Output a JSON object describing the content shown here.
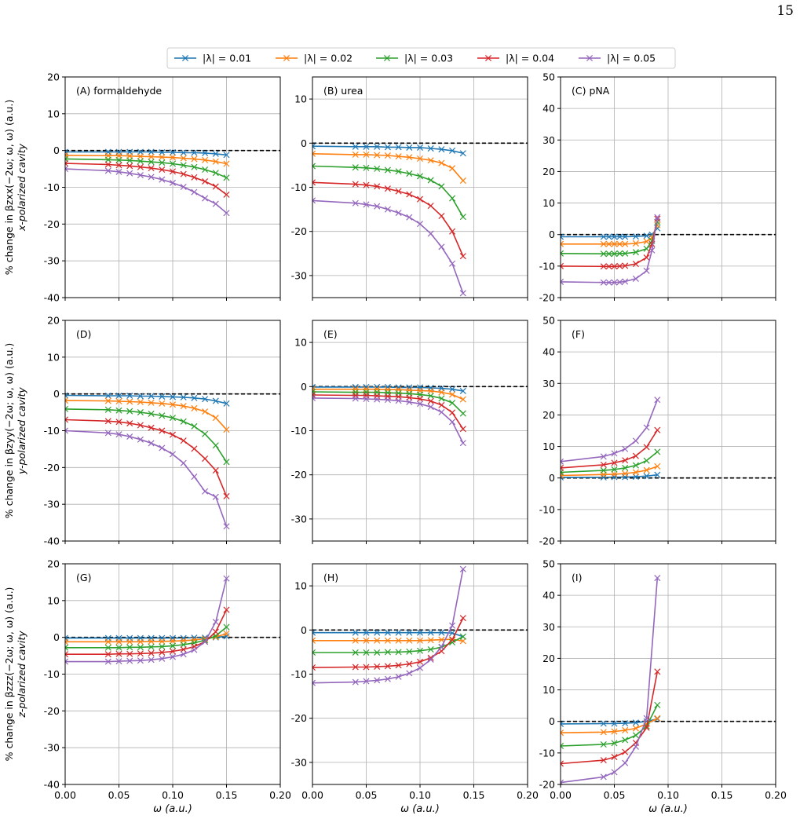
{
  "page_number": "15",
  "colors": {
    "series": [
      "#1f77b4",
      "#ff7f0e",
      "#2ca02c",
      "#d62728",
      "#9467bd"
    ],
    "reference_line": "#000000",
    "grid": "#b0b0b0"
  },
  "legend": {
    "placement": "top-center",
    "entries": [
      "|λ| = 0.01",
      "|λ| = 0.02",
      "|λ| = 0.03",
      "|λ| = 0.04",
      "|λ| = 0.05"
    ]
  },
  "xlabel": "ω (a.u.)",
  "row_ylabels": [
    [
      "% change in βzxx(−2ω; ω, ω) (a.u.)",
      "x-polarized cavity"
    ],
    [
      "% change in βzyy(−2ω; ω, ω) (a.u.)",
      "y-polarized cavity"
    ],
    [
      "% change in βzzz(−2ω; ω, ω) (a.u.)",
      "z-polarized cavity"
    ]
  ],
  "chart_data": [
    {
      "type": "line",
      "title": "(A) formaldehyde",
      "x": [
        0,
        0.04,
        0.05,
        0.06,
        0.07,
        0.08,
        0.09,
        0.1,
        0.11,
        0.12,
        0.13,
        0.14,
        0.15
      ],
      "xlim": [
        0,
        0.2
      ],
      "ylim": [
        -40,
        20
      ],
      "xticks": [
        0,
        0.05,
        0.1,
        0.15,
        0.2
      ],
      "yticks": [
        -40,
        -30,
        -20,
        -10,
        0,
        10,
        20
      ],
      "show_xticklabels": false,
      "grid": true,
      "reference_y": 0,
      "series": [
        {
          "name": "|λ| = 0.01",
          "values": [
            -0.4,
            -0.4,
            -0.4,
            -0.4,
            -0.4,
            -0.4,
            -0.5,
            -0.5,
            -0.6,
            -0.6,
            -0.7,
            -0.9,
            -1.2
          ]
        },
        {
          "name": "|λ| = 0.02",
          "values": [
            -1.3,
            -1.4,
            -1.4,
            -1.5,
            -1.6,
            -1.7,
            -1.8,
            -1.9,
            -2.1,
            -2.3,
            -2.6,
            -3.0,
            -3.6
          ]
        },
        {
          "name": "|λ| = 0.03",
          "values": [
            -2.3,
            -2.5,
            -2.6,
            -2.7,
            -2.9,
            -3.1,
            -3.3,
            -3.6,
            -4.0,
            -4.5,
            -5.2,
            -6.1,
            -7.4
          ]
        },
        {
          "name": "|λ| = 0.04",
          "values": [
            -3.5,
            -3.8,
            -4.0,
            -4.2,
            -4.5,
            -4.8,
            -5.2,
            -5.7,
            -6.4,
            -7.3,
            -8.4,
            -9.8,
            -12.0
          ]
        },
        {
          "name": "|λ| = 0.05",
          "values": [
            -5.0,
            -5.5,
            -5.8,
            -6.2,
            -6.7,
            -7.2,
            -7.9,
            -8.8,
            -9.9,
            -11.3,
            -13.0,
            -14.5,
            -17.0
          ]
        }
      ]
    },
    {
      "type": "line",
      "title": "(B) urea",
      "x": [
        0,
        0.04,
        0.05,
        0.06,
        0.07,
        0.08,
        0.09,
        0.1,
        0.11,
        0.12,
        0.13,
        0.14
      ],
      "xlim": [
        0,
        0.2
      ],
      "ylim": [
        -35,
        15
      ],
      "xticks": [
        0,
        0.05,
        0.1,
        0.15,
        0.2
      ],
      "yticks": [
        -30,
        -20,
        -10,
        0,
        10
      ],
      "show_xticklabels": false,
      "grid": true,
      "reference_y": 0,
      "series": [
        {
          "name": "|λ| = 0.01",
          "values": [
            -0.7,
            -0.8,
            -0.8,
            -0.8,
            -0.9,
            -0.9,
            -1.0,
            -1.0,
            -1.2,
            -1.4,
            -1.7,
            -2.3
          ]
        },
        {
          "name": "|λ| = 0.02",
          "values": [
            -2.4,
            -2.6,
            -2.6,
            -2.7,
            -2.8,
            -3.0,
            -3.2,
            -3.5,
            -3.9,
            -4.5,
            -5.7,
            -8.5
          ]
        },
        {
          "name": "|λ| = 0.03",
          "values": [
            -5.2,
            -5.5,
            -5.6,
            -5.8,
            -6.1,
            -6.4,
            -6.9,
            -7.5,
            -8.4,
            -9.8,
            -12.5,
            -16.7
          ]
        },
        {
          "name": "|λ| = 0.04",
          "values": [
            -8.9,
            -9.3,
            -9.5,
            -9.8,
            -10.3,
            -10.9,
            -11.6,
            -12.7,
            -14.2,
            -16.5,
            -20.0,
            -25.6
          ]
        },
        {
          "name": "|λ| = 0.05",
          "values": [
            -13.0,
            -13.6,
            -13.9,
            -14.3,
            -15.0,
            -15.8,
            -16.8,
            -18.3,
            -20.5,
            -23.5,
            -27.3,
            -34.0
          ]
        }
      ]
    },
    {
      "type": "line",
      "title": "(C) pNA",
      "x": [
        0,
        0.04,
        0.045,
        0.05,
        0.055,
        0.06,
        0.07,
        0.08,
        0.085,
        0.09
      ],
      "xlim": [
        0,
        0.2
      ],
      "ylim": [
        -20,
        50
      ],
      "xticks": [
        0,
        0.05,
        0.1,
        0.15,
        0.2
      ],
      "yticks": [
        -20,
        -10,
        0,
        10,
        20,
        30,
        40,
        50
      ],
      "show_xticklabels": false,
      "grid": true,
      "reference_y": 0,
      "series": [
        {
          "name": "|λ| = 0.01",
          "values": [
            -0.7,
            -0.7,
            -0.7,
            -0.7,
            -0.7,
            -0.7,
            -0.6,
            -0.4,
            0.0,
            2.0
          ]
        },
        {
          "name": "|λ| = 0.02",
          "values": [
            -3.0,
            -3.0,
            -3.0,
            -3.0,
            -3.0,
            -3.0,
            -2.8,
            -2.2,
            -1.0,
            3.0
          ]
        },
        {
          "name": "|λ| = 0.03",
          "values": [
            -6.0,
            -6.1,
            -6.1,
            -6.1,
            -6.0,
            -6.0,
            -5.6,
            -4.5,
            -2.0,
            4.0
          ]
        },
        {
          "name": "|λ| = 0.04",
          "values": [
            -10.0,
            -10.1,
            -10.1,
            -10.1,
            -10.0,
            -9.9,
            -9.3,
            -7.3,
            -3.0,
            5.0
          ]
        },
        {
          "name": "|λ| = 0.05",
          "values": [
            -15.0,
            -15.2,
            -15.2,
            -15.2,
            -15.1,
            -14.9,
            -14.0,
            -11.5,
            -5.0,
            5.5
          ]
        }
      ]
    },
    {
      "type": "line",
      "title": "(D)",
      "x": [
        0,
        0.04,
        0.05,
        0.06,
        0.07,
        0.08,
        0.09,
        0.1,
        0.11,
        0.12,
        0.13,
        0.14,
        0.15
      ],
      "xlim": [
        0,
        0.2
      ],
      "ylim": [
        -40,
        20
      ],
      "xticks": [
        0,
        0.05,
        0.1,
        0.15,
        0.2
      ],
      "yticks": [
        -40,
        -30,
        -20,
        -10,
        0,
        10,
        20
      ],
      "show_xticklabels": false,
      "grid": true,
      "reference_y": 0,
      "series": [
        {
          "name": "|λ| = 0.01",
          "values": [
            -0.4,
            -0.5,
            -0.5,
            -0.5,
            -0.6,
            -0.6,
            -0.7,
            -0.8,
            -0.9,
            -1.1,
            -1.4,
            -1.9,
            -2.6
          ]
        },
        {
          "name": "|λ| = 0.02",
          "values": [
            -1.8,
            -1.9,
            -2.0,
            -2.1,
            -2.2,
            -2.4,
            -2.6,
            -2.9,
            -3.3,
            -3.9,
            -4.8,
            -6.5,
            -9.7
          ]
        },
        {
          "name": "|λ| = 0.03",
          "values": [
            -4.1,
            -4.3,
            -4.5,
            -4.7,
            -5.0,
            -5.4,
            -5.9,
            -6.5,
            -7.5,
            -8.8,
            -10.9,
            -14.0,
            -18.5
          ]
        },
        {
          "name": "|λ| = 0.04",
          "values": [
            -7.0,
            -7.4,
            -7.6,
            -8.0,
            -8.5,
            -9.2,
            -10.0,
            -11.1,
            -12.7,
            -14.9,
            -17.6,
            -20.8,
            -27.8
          ]
        },
        {
          "name": "|λ| = 0.05",
          "values": [
            -10.0,
            -10.6,
            -11.0,
            -11.6,
            -12.4,
            -13.4,
            -14.7,
            -16.4,
            -18.8,
            -22.5,
            -26.5,
            -28.0,
            -36.0
          ]
        }
      ]
    },
    {
      "type": "line",
      "title": "(E)",
      "x": [
        0,
        0.04,
        0.05,
        0.06,
        0.07,
        0.08,
        0.09,
        0.1,
        0.11,
        0.12,
        0.13,
        0.14
      ],
      "xlim": [
        0,
        0.2
      ],
      "ylim": [
        -35,
        15
      ],
      "xticks": [
        0,
        0.05,
        0.1,
        0.15,
        0.2
      ],
      "yticks": [
        -30,
        -20,
        -10,
        0,
        10
      ],
      "show_xticklabels": false,
      "grid": true,
      "reference_y": 0,
      "series": [
        {
          "name": "|λ| = 0.01",
          "values": [
            -0.1,
            -0.1,
            -0.1,
            -0.1,
            -0.1,
            -0.2,
            -0.2,
            -0.2,
            -0.3,
            -0.4,
            -0.6,
            -1.0
          ]
        },
        {
          "name": "|λ| = 0.02",
          "values": [
            -0.6,
            -0.6,
            -0.6,
            -0.6,
            -0.7,
            -0.7,
            -0.8,
            -0.9,
            -1.0,
            -1.3,
            -1.8,
            -2.9
          ]
        },
        {
          "name": "|λ| = 0.03",
          "values": [
            -1.2,
            -1.3,
            -1.3,
            -1.3,
            -1.4,
            -1.5,
            -1.6,
            -1.8,
            -2.1,
            -2.7,
            -3.7,
            -6.1
          ]
        },
        {
          "name": "|λ| = 0.04",
          "values": [
            -1.9,
            -2.0,
            -2.0,
            -2.1,
            -2.2,
            -2.3,
            -2.5,
            -2.8,
            -3.3,
            -4.2,
            -5.9,
            -9.6
          ]
        },
        {
          "name": "|λ| = 0.05",
          "values": [
            -2.6,
            -2.7,
            -2.8,
            -2.9,
            -3.0,
            -3.2,
            -3.5,
            -3.9,
            -4.6,
            -5.8,
            -8.0,
            -12.8
          ]
        }
      ]
    },
    {
      "type": "line",
      "title": "(F)",
      "x": [
        0,
        0.04,
        0.05,
        0.06,
        0.07,
        0.08,
        0.09
      ],
      "xlim": [
        0,
        0.2
      ],
      "ylim": [
        -20,
        50
      ],
      "xticks": [
        0,
        0.05,
        0.1,
        0.15,
        0.2
      ],
      "yticks": [
        -20,
        -10,
        0,
        10,
        20,
        30,
        40,
        50
      ],
      "show_xticklabels": false,
      "grid": true,
      "reference_y": 0,
      "series": [
        {
          "name": "|λ| = 0.01",
          "values": [
            0.2,
            0.2,
            0.3,
            0.3,
            0.4,
            0.6,
            1.0
          ]
        },
        {
          "name": "|λ| = 0.02",
          "values": [
            0.8,
            1.1,
            1.2,
            1.4,
            1.8,
            2.5,
            3.7
          ]
        },
        {
          "name": "|λ| = 0.03",
          "values": [
            1.8,
            2.4,
            2.7,
            3.2,
            4.0,
            5.5,
            8.3
          ]
        },
        {
          "name": "|λ| = 0.04",
          "values": [
            3.2,
            4.2,
            4.8,
            5.6,
            7.0,
            9.8,
            15.2
          ]
        },
        {
          "name": "|λ| = 0.05",
          "values": [
            5.2,
            6.8,
            7.8,
            9.2,
            11.8,
            16.0,
            24.8
          ]
        }
      ]
    },
    {
      "type": "line",
      "title": "(G)",
      "x": [
        0,
        0.04,
        0.05,
        0.06,
        0.07,
        0.08,
        0.09,
        0.1,
        0.11,
        0.12,
        0.13,
        0.14,
        0.15
      ],
      "xlim": [
        0,
        0.2
      ],
      "ylim": [
        -40,
        20
      ],
      "xticks": [
        0,
        0.05,
        0.1,
        0.15,
        0.2
      ],
      "yticks": [
        -40,
        -30,
        -20,
        -10,
        0,
        10,
        20
      ],
      "show_xticklabels": true,
      "grid": true,
      "reference_y": 0,
      "series": [
        {
          "name": "|λ| = 0.01",
          "values": [
            -0.2,
            -0.2,
            -0.2,
            -0.2,
            -0.2,
            -0.2,
            -0.2,
            -0.2,
            -0.2,
            -0.1,
            -0.1,
            0.0,
            0.3
          ]
        },
        {
          "name": "|λ| = 0.02",
          "values": [
            -1.2,
            -1.2,
            -1.2,
            -1.2,
            -1.2,
            -1.1,
            -1.1,
            -1.0,
            -0.9,
            -0.7,
            -0.4,
            0.1,
            1.0
          ]
        },
        {
          "name": "|λ| = 0.03",
          "values": [
            -2.8,
            -2.8,
            -2.8,
            -2.7,
            -2.7,
            -2.6,
            -2.5,
            -2.3,
            -2.0,
            -1.5,
            -0.8,
            0.4,
            2.8
          ]
        },
        {
          "name": "|λ| = 0.04",
          "values": [
            -4.6,
            -4.6,
            -4.5,
            -4.5,
            -4.4,
            -4.3,
            -4.1,
            -3.8,
            -3.3,
            -2.5,
            -1.2,
            1.5,
            7.5
          ]
        },
        {
          "name": "|λ| = 0.05",
          "values": [
            -6.6,
            -6.6,
            -6.5,
            -6.4,
            -6.3,
            -6.1,
            -5.8,
            -5.3,
            -4.6,
            -3.4,
            -1.2,
            4.2,
            16.0
          ]
        }
      ]
    },
    {
      "type": "line",
      "title": "(H)",
      "x": [
        0,
        0.04,
        0.05,
        0.06,
        0.07,
        0.08,
        0.09,
        0.1,
        0.11,
        0.12,
        0.13,
        0.14
      ],
      "xlim": [
        0,
        0.2
      ],
      "ylim": [
        -35,
        15
      ],
      "xticks": [
        0,
        0.05,
        0.1,
        0.15,
        0.2
      ],
      "yticks": [
        -30,
        -20,
        -10,
        0,
        10
      ],
      "show_xticklabels": true,
      "grid": true,
      "reference_y": 0,
      "series": [
        {
          "name": "|λ| = 0.01",
          "values": [
            -0.6,
            -0.6,
            -0.6,
            -0.6,
            -0.6,
            -0.6,
            -0.6,
            -0.6,
            -0.6,
            -0.6,
            -0.7,
            -1.5
          ]
        },
        {
          "name": "|λ| = 0.02",
          "values": [
            -2.4,
            -2.4,
            -2.4,
            -2.4,
            -2.4,
            -2.4,
            -2.4,
            -2.4,
            -2.3,
            -2.2,
            -2.1,
            -2.5
          ]
        },
        {
          "name": "|λ| = 0.03",
          "values": [
            -5.1,
            -5.1,
            -5.1,
            -5.1,
            -5.0,
            -5.0,
            -4.9,
            -4.7,
            -4.4,
            -3.9,
            -2.8,
            -1.5
          ]
        },
        {
          "name": "|λ| = 0.04",
          "values": [
            -8.5,
            -8.4,
            -8.4,
            -8.3,
            -8.2,
            -8.0,
            -7.7,
            -7.2,
            -6.3,
            -4.8,
            -2.2,
            2.7
          ]
        },
        {
          "name": "|λ| = 0.05",
          "values": [
            -12.0,
            -11.8,
            -11.6,
            -11.4,
            -11.1,
            -10.6,
            -9.8,
            -8.6,
            -6.7,
            -3.8,
            1.0,
            13.8
          ]
        }
      ]
    },
    {
      "type": "line",
      "title": "(I)",
      "x": [
        0,
        0.04,
        0.05,
        0.06,
        0.07,
        0.08,
        0.09
      ],
      "xlim": [
        0,
        0.2
      ],
      "ylim": [
        -20,
        50
      ],
      "xticks": [
        0,
        0.05,
        0.1,
        0.15,
        0.2
      ],
      "yticks": [
        -20,
        -10,
        0,
        10,
        20,
        30,
        40,
        50
      ],
      "show_xticklabels": true,
      "grid": true,
      "reference_y": 0,
      "series": [
        {
          "name": "|λ| = 0.01",
          "values": [
            -0.8,
            -0.7,
            -0.7,
            -0.6,
            -0.4,
            0.0,
            0.8
          ]
        },
        {
          "name": "|λ| = 0.02",
          "values": [
            -3.6,
            -3.4,
            -3.2,
            -2.8,
            -2.2,
            -0.8,
            1.0
          ]
        },
        {
          "name": "|λ| = 0.03",
          "values": [
            -7.8,
            -7.3,
            -6.9,
            -5.9,
            -4.4,
            -1.5,
            5.2
          ]
        },
        {
          "name": "|λ| = 0.04",
          "values": [
            -13.4,
            -12.3,
            -11.3,
            -9.7,
            -6.8,
            -2.0,
            15.8
          ]
        },
        {
          "name": "|λ| = 0.05",
          "values": [
            -19.4,
            -17.6,
            -16.1,
            -13.2,
            -8.0,
            1.0,
            45.5
          ]
        }
      ]
    }
  ]
}
